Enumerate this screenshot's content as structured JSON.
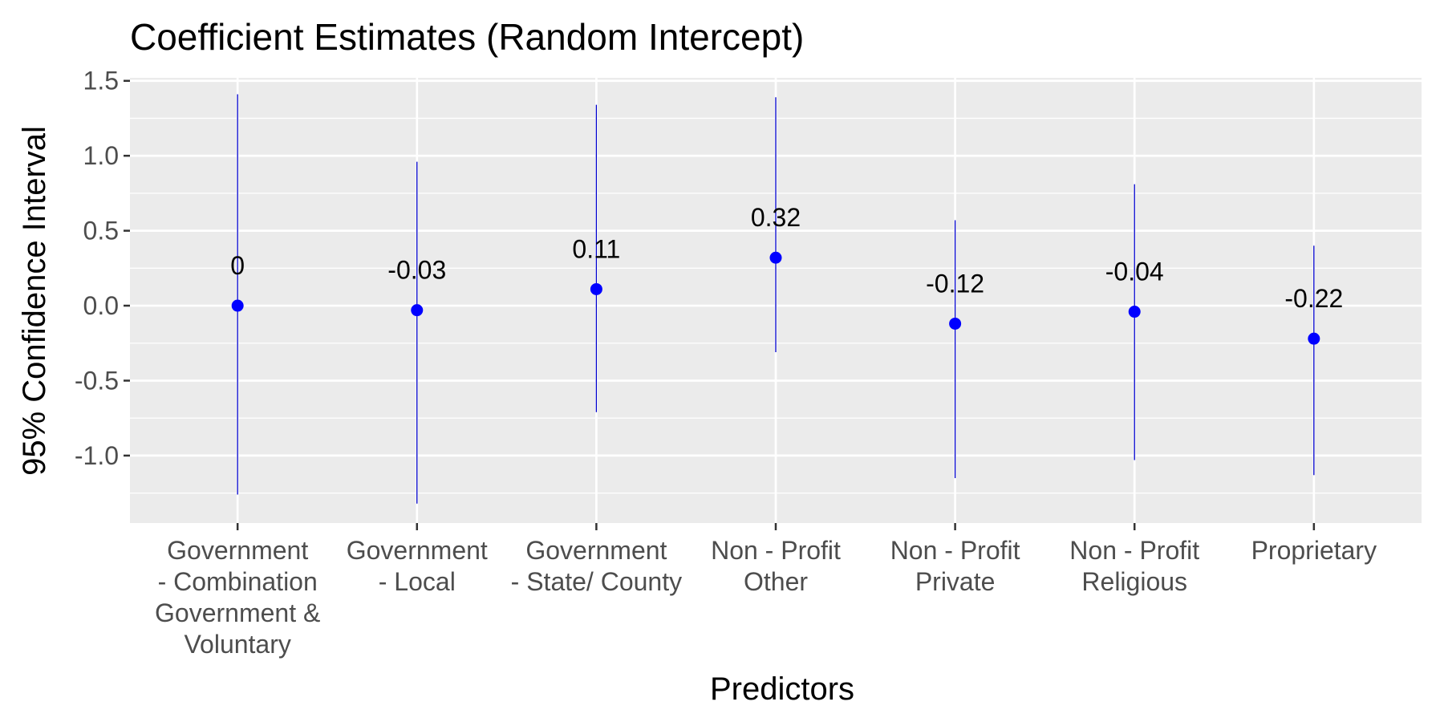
{
  "chart_data": {
    "type": "scatter",
    "title": "Coefficient Estimates (Random Intercept)",
    "xlabel": "Predictors",
    "ylabel": "95% Confidence Interval",
    "ylim": [
      -1.45,
      1.52
    ],
    "yticks": [
      "1.5",
      "1.0",
      "0.5",
      "0.0",
      "-0.5",
      "-1.0"
    ],
    "ytick_values": [
      1.5,
      1.0,
      0.5,
      0.0,
      -0.5,
      -1.0
    ],
    "grid": true,
    "legend": "none",
    "categories": [
      [
        "Government",
        "- Combination",
        "Government &",
        "Voluntary"
      ],
      [
        "Government",
        "- Local"
      ],
      [
        "Government",
        "- State/ County"
      ],
      [
        "Non - Profit",
        "Other"
      ],
      [
        "Non - Profit",
        "Private"
      ],
      [
        "Non - Profit",
        "Religious"
      ],
      [
        "Proprietary"
      ]
    ],
    "estimates": [
      0,
      -0.03,
      0.11,
      0.32,
      -0.12,
      -0.04,
      -0.22
    ],
    "labels": [
      "0",
      "-0.03",
      "0.11",
      "0.32",
      "-0.12",
      "-0.04",
      "-0.22"
    ],
    "lower": [
      -1.26,
      -1.32,
      -0.71,
      -0.31,
      -1.15,
      -1.03,
      -1.13
    ],
    "upper": [
      1.41,
      0.96,
      1.34,
      1.39,
      0.57,
      0.81,
      0.4
    ],
    "colors": {
      "point": "#0000ff",
      "errorbar": "#0000cc",
      "panel": "#ebebeb",
      "grid": "#ffffff"
    }
  }
}
